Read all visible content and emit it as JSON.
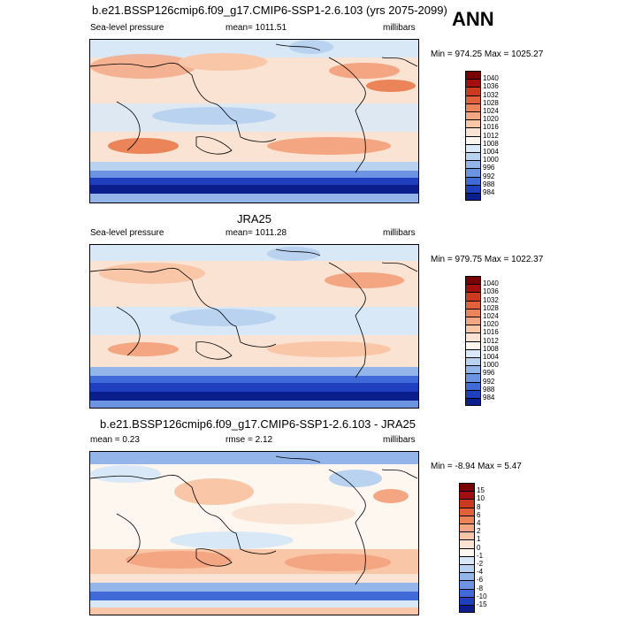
{
  "season": "ANN",
  "panels": [
    {
      "title": "b.e21.BSSP126cmip6.f09_g17.CMIP6-SSP1-2.6.103 (yrs 2075-2099)",
      "left": "Sea-level pressure",
      "center": "mean= 1011.51",
      "right": "millibars",
      "minmax": "Min = 974.25 Max = 1025.27",
      "colorbar": {
        "labels": [
          "1040",
          "1036",
          "1032",
          "1028",
          "1024",
          "1020",
          "1016",
          "1012",
          "1008",
          "1004",
          "1000",
          "996",
          "992",
          "988",
          "984"
        ],
        "colors": [
          "#7a0000",
          "#a30f0f",
          "#c93a1e",
          "#e0613a",
          "#ec8459",
          "#f4a582",
          "#f9c6a8",
          "#fbe3d3",
          "#fef7f0",
          "#d9e8f6",
          "#b9d2f0",
          "#93b5ea",
          "#6c94e3",
          "#3f6ad8",
          "#1f3fbf",
          "#0a1e8c"
        ]
      }
    },
    {
      "title": "JRA25",
      "left": "Sea-level pressure",
      "center": "mean= 1011.28",
      "right": "millibars",
      "minmax": "Min = 979.75 Max = 1022.37",
      "colorbar": {
        "labels": [
          "1040",
          "1036",
          "1032",
          "1028",
          "1024",
          "1020",
          "1016",
          "1012",
          "1008",
          "1004",
          "1000",
          "996",
          "992",
          "988",
          "984"
        ],
        "colors": [
          "#7a0000",
          "#a30f0f",
          "#c93a1e",
          "#e0613a",
          "#ec8459",
          "#f4a582",
          "#f9c6a8",
          "#fbe3d3",
          "#fef7f0",
          "#d9e8f6",
          "#b9d2f0",
          "#93b5ea",
          "#6c94e3",
          "#3f6ad8",
          "#1f3fbf",
          "#0a1e8c"
        ]
      }
    },
    {
      "title": "b.e21.BSSP126cmip6.f09_g17.CMIP6-SSP1-2.6.103 - JRA25",
      "left": "mean =   0.23",
      "center": "rmse =   2.12",
      "right": "millibars",
      "minmax": "Min =  -8.94 Max =   5.47",
      "colorbar": {
        "labels": [
          "15",
          "10",
          "8",
          "6",
          "4",
          "2",
          "1",
          "0",
          "-1",
          "-2",
          "-4",
          "-6",
          "-8",
          "-10",
          "-15"
        ],
        "colors": [
          "#7a0000",
          "#a30f0f",
          "#c93a1e",
          "#e0613a",
          "#ec8459",
          "#f4a582",
          "#f9c6a8",
          "#fbe3d3",
          "#fef7f0",
          "#d9e8f6",
          "#b9d2f0",
          "#93b5ea",
          "#6c94e3",
          "#3f6ad8",
          "#1f3fbf",
          "#0a1e8c"
        ]
      }
    }
  ]
}
